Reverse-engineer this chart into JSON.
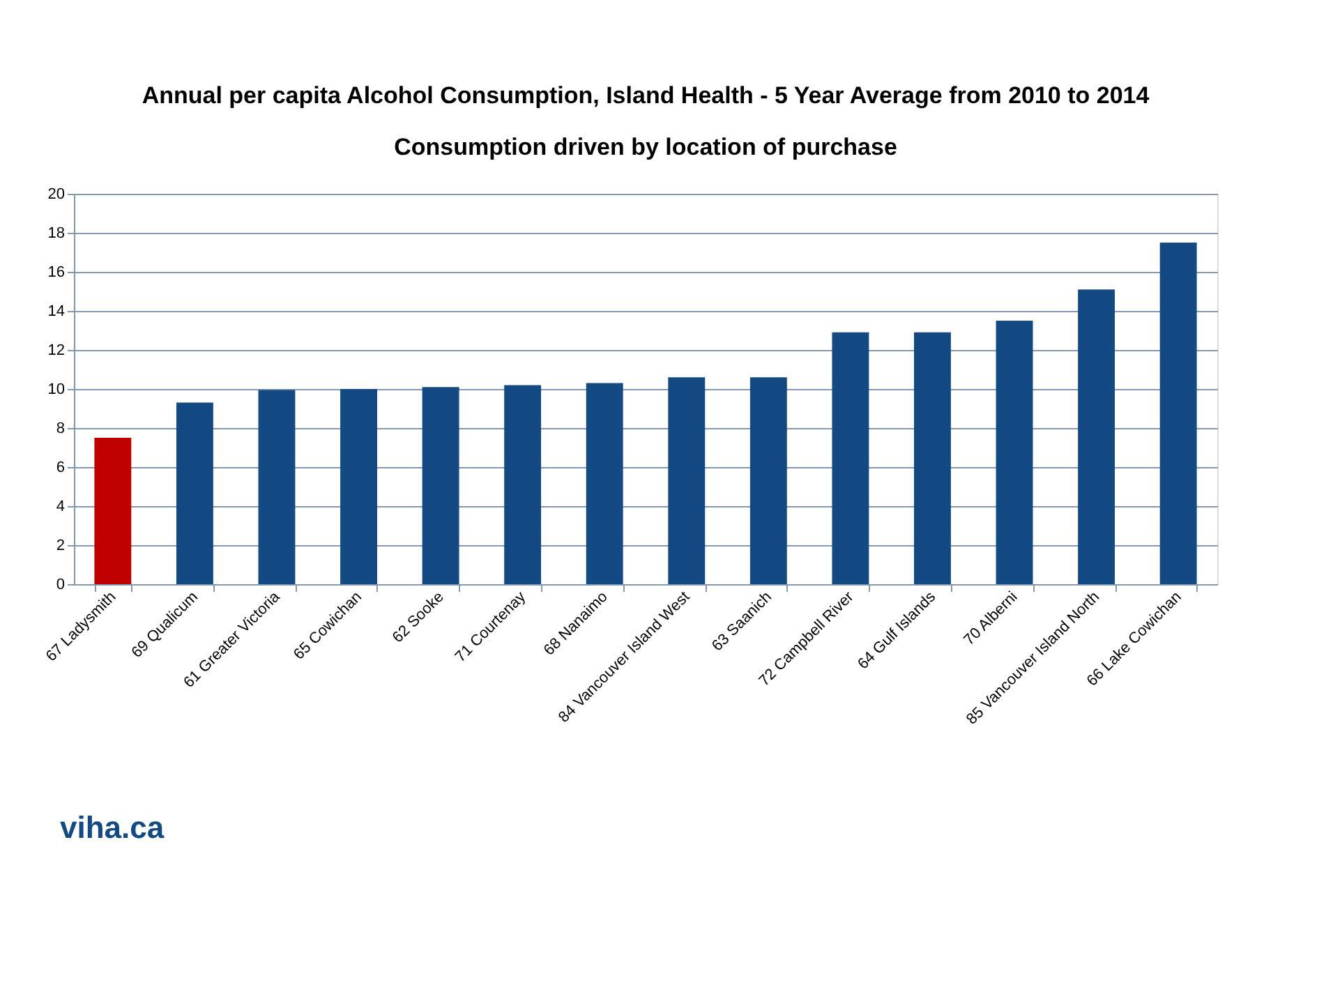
{
  "chart_data": {
    "type": "bar",
    "title": "Annual per capita Alcohol Consumption, Island Health - 5 Year Average from 2010 to 2014",
    "subtitle": "Consumption driven by location of purchase",
    "categories": [
      "67 Ladysmith",
      "69 Qualicum",
      "61 Greater Victoria",
      "65 Cowichan",
      "62 Sooke",
      "71 Courtenay",
      "68 Nanaimo",
      "84 Vancouver Island West",
      "63 Saanich",
      "72 Campbell River",
      "64 Gulf Islands",
      "70 Alberni",
      "85 Vancouver Island North",
      "66 Lake Cowichan"
    ],
    "values": [
      7.5,
      9.3,
      9.95,
      10.0,
      10.1,
      10.2,
      10.3,
      10.6,
      10.6,
      12.9,
      12.9,
      13.5,
      15.1,
      17.5
    ],
    "colors": [
      "#c00000",
      "#134a84",
      "#134a84",
      "#134a84",
      "#134a84",
      "#134a84",
      "#134a84",
      "#134a84",
      "#134a84",
      "#134a84",
      "#134a84",
      "#134a84",
      "#134a84",
      "#134a84"
    ],
    "ylim": [
      0,
      20
    ],
    "yticks": [
      0,
      2,
      4,
      6,
      8,
      10,
      12,
      14,
      16,
      18,
      20
    ],
    "grid": "y",
    "annotations": [
      "viha.ca"
    ]
  }
}
